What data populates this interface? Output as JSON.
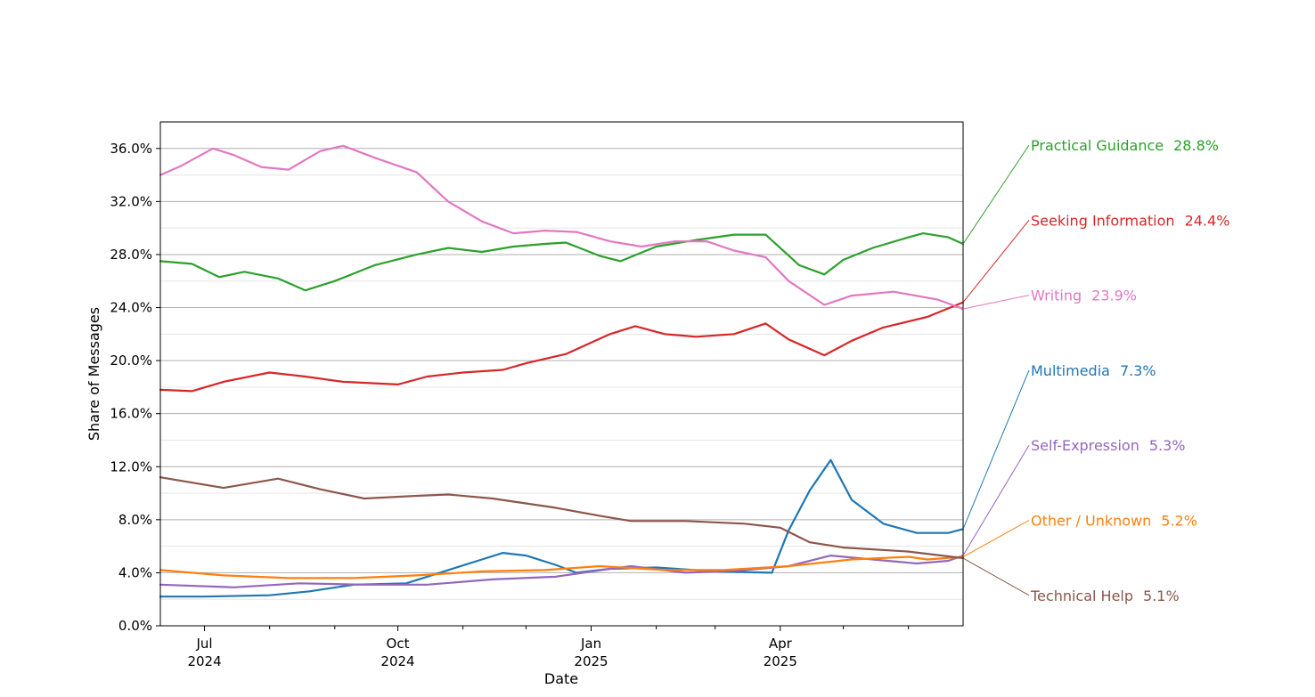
{
  "chart_data": {
    "type": "line",
    "title": "",
    "xlabel": "Date",
    "ylabel": "Share of Messages",
    "ylim": [
      0,
      38
    ],
    "yticks": [
      0,
      4,
      8,
      12,
      16,
      20,
      24,
      28,
      32,
      36
    ],
    "ytick_labels": [
      "0.0%",
      "4.0%",
      "8.0%",
      "12.0%",
      "16.0%",
      "20.0%",
      "24.0%",
      "28.0%",
      "32.0%",
      "36.0%"
    ],
    "xlim": [
      "2024-06-10",
      "2025-06-27"
    ],
    "xticks": [
      {
        "date": "2024-07-01",
        "line1": "Jul",
        "line2": "2024"
      },
      {
        "date": "2024-10-01",
        "line1": "Oct",
        "line2": "2024"
      },
      {
        "date": "2025-01-01",
        "line1": "Jan",
        "line2": "2025"
      },
      {
        "date": "2025-04-01",
        "line1": "Apr",
        "line2": "2025"
      }
    ],
    "minor_xticks": [
      "2024-08-01",
      "2024-09-01",
      "2024-11-01",
      "2024-12-01",
      "2025-02-01",
      "2025-03-01",
      "2025-05-01",
      "2025-06-01"
    ],
    "grid": true,
    "legend": "direct labels at right",
    "series": [
      {
        "name": "Practical Guidance",
        "end_label": "28.8%",
        "color": "#2ca02c",
        "points": [
          [
            "2024-06-10",
            27.5
          ],
          [
            "2024-06-25",
            27.3
          ],
          [
            "2024-07-08",
            26.3
          ],
          [
            "2024-07-20",
            26.7
          ],
          [
            "2024-08-05",
            26.2
          ],
          [
            "2024-08-18",
            25.3
          ],
          [
            "2024-09-01",
            26.0
          ],
          [
            "2024-09-20",
            27.2
          ],
          [
            "2024-10-10",
            28.0
          ],
          [
            "2024-10-25",
            28.5
          ],
          [
            "2024-11-10",
            28.2
          ],
          [
            "2024-11-25",
            28.6
          ],
          [
            "2024-12-10",
            28.8
          ],
          [
            "2024-12-20",
            28.9
          ],
          [
            "2025-01-05",
            27.9
          ],
          [
            "2025-01-15",
            27.5
          ],
          [
            "2025-02-01",
            28.6
          ],
          [
            "2025-02-20",
            29.1
          ],
          [
            "2025-03-10",
            29.5
          ],
          [
            "2025-03-25",
            29.5
          ],
          [
            "2025-04-10",
            27.2
          ],
          [
            "2025-04-22",
            26.5
          ],
          [
            "2025-05-01",
            27.6
          ],
          [
            "2025-05-15",
            28.5
          ],
          [
            "2025-06-01",
            29.3
          ],
          [
            "2025-06-08",
            29.6
          ],
          [
            "2025-06-20",
            29.3
          ],
          [
            "2025-06-27",
            28.8
          ]
        ]
      },
      {
        "name": "Seeking Information",
        "end_label": "24.4%",
        "color": "#d62728",
        "points": [
          [
            "2024-06-10",
            17.8
          ],
          [
            "2024-06-25",
            17.7
          ],
          [
            "2024-07-10",
            18.4
          ],
          [
            "2024-08-01",
            19.1
          ],
          [
            "2024-08-18",
            18.8
          ],
          [
            "2024-09-05",
            18.4
          ],
          [
            "2024-10-01",
            18.2
          ],
          [
            "2024-10-15",
            18.8
          ],
          [
            "2024-11-01",
            19.1
          ],
          [
            "2024-11-20",
            19.3
          ],
          [
            "2024-12-01",
            19.8
          ],
          [
            "2024-12-20",
            20.5
          ],
          [
            "2025-01-10",
            22.0
          ],
          [
            "2025-01-22",
            22.6
          ],
          [
            "2025-02-05",
            22.0
          ],
          [
            "2025-02-20",
            21.8
          ],
          [
            "2025-03-10",
            22.0
          ],
          [
            "2025-03-25",
            22.8
          ],
          [
            "2025-04-05",
            21.6
          ],
          [
            "2025-04-22",
            20.4
          ],
          [
            "2025-05-05",
            21.5
          ],
          [
            "2025-05-20",
            22.5
          ],
          [
            "2025-06-10",
            23.3
          ],
          [
            "2025-06-27",
            24.4
          ]
        ]
      },
      {
        "name": "Writing",
        "end_label": "23.9%",
        "color": "#e377c2",
        "points": [
          [
            "2024-06-10",
            34.0
          ],
          [
            "2024-06-20",
            34.7
          ],
          [
            "2024-07-05",
            36.0
          ],
          [
            "2024-07-15",
            35.5
          ],
          [
            "2024-07-28",
            34.6
          ],
          [
            "2024-08-10",
            34.4
          ],
          [
            "2024-08-25",
            35.8
          ],
          [
            "2024-09-05",
            36.2
          ],
          [
            "2024-09-20",
            35.3
          ],
          [
            "2024-10-10",
            34.2
          ],
          [
            "2024-10-25",
            32.0
          ],
          [
            "2024-11-10",
            30.5
          ],
          [
            "2024-11-25",
            29.6
          ],
          [
            "2024-12-10",
            29.8
          ],
          [
            "2024-12-25",
            29.7
          ],
          [
            "2025-01-10",
            29.0
          ],
          [
            "2025-01-25",
            28.6
          ],
          [
            "2025-02-10",
            29.0
          ],
          [
            "2025-02-25",
            29.0
          ],
          [
            "2025-03-10",
            28.3
          ],
          [
            "2025-03-25",
            27.8
          ],
          [
            "2025-04-05",
            26.0
          ],
          [
            "2025-04-22",
            24.2
          ],
          [
            "2025-05-05",
            24.9
          ],
          [
            "2025-05-25",
            25.2
          ],
          [
            "2025-06-15",
            24.6
          ],
          [
            "2025-06-27",
            23.9
          ]
        ]
      },
      {
        "name": "Multimedia",
        "end_label": "7.3%",
        "color": "#1f77b4",
        "points": [
          [
            "2024-06-10",
            2.2
          ],
          [
            "2024-07-01",
            2.2
          ],
          [
            "2024-08-01",
            2.3
          ],
          [
            "2024-08-20",
            2.6
          ],
          [
            "2024-09-10",
            3.1
          ],
          [
            "2024-10-05",
            3.2
          ],
          [
            "2024-10-25",
            4.2
          ],
          [
            "2024-11-10",
            5.0
          ],
          [
            "2024-11-20",
            5.5
          ],
          [
            "2024-12-01",
            5.3
          ],
          [
            "2024-12-15",
            4.6
          ],
          [
            "2024-12-25",
            4.0
          ],
          [
            "2025-01-10",
            4.3
          ],
          [
            "2025-02-01",
            4.4
          ],
          [
            "2025-03-01",
            4.1
          ],
          [
            "2025-03-28",
            4.0
          ],
          [
            "2025-04-05",
            7.2
          ],
          [
            "2025-04-15",
            10.2
          ],
          [
            "2025-04-25",
            12.5
          ],
          [
            "2025-05-05",
            9.5
          ],
          [
            "2025-05-20",
            7.7
          ],
          [
            "2025-06-05",
            7.0
          ],
          [
            "2025-06-20",
            7.0
          ],
          [
            "2025-06-27",
            7.3
          ]
        ]
      },
      {
        "name": "Self-Expression",
        "end_label": "5.3%",
        "color": "#9467bd",
        "points": [
          [
            "2024-06-10",
            3.1
          ],
          [
            "2024-07-15",
            2.9
          ],
          [
            "2024-08-15",
            3.2
          ],
          [
            "2024-09-15",
            3.1
          ],
          [
            "2024-10-15",
            3.1
          ],
          [
            "2024-11-15",
            3.5
          ],
          [
            "2024-12-15",
            3.7
          ],
          [
            "2025-01-10",
            4.3
          ],
          [
            "2025-01-20",
            4.5
          ],
          [
            "2025-02-15",
            4.0
          ],
          [
            "2025-03-15",
            4.2
          ],
          [
            "2025-04-05",
            4.5
          ],
          [
            "2025-04-25",
            5.3
          ],
          [
            "2025-05-15",
            5.0
          ],
          [
            "2025-06-05",
            4.7
          ],
          [
            "2025-06-20",
            4.9
          ],
          [
            "2025-06-27",
            5.3
          ]
        ]
      },
      {
        "name": "Other / Unknown",
        "end_label": "5.2%",
        "color": "#ff7f0e",
        "points": [
          [
            "2024-06-10",
            4.2
          ],
          [
            "2024-07-10",
            3.8
          ],
          [
            "2024-08-10",
            3.6
          ],
          [
            "2024-09-10",
            3.6
          ],
          [
            "2024-10-10",
            3.8
          ],
          [
            "2024-11-10",
            4.1
          ],
          [
            "2024-12-10",
            4.2
          ],
          [
            "2025-01-05",
            4.5
          ],
          [
            "2025-02-05",
            4.2
          ],
          [
            "2025-03-05",
            4.2
          ],
          [
            "2025-04-05",
            4.5
          ],
          [
            "2025-05-05",
            5.0
          ],
          [
            "2025-06-01",
            5.2
          ],
          [
            "2025-06-10",
            5.0
          ],
          [
            "2025-06-27",
            5.2
          ]
        ]
      },
      {
        "name": "Technical Help",
        "end_label": "5.1%",
        "color": "#8c564b",
        "points": [
          [
            "2024-06-10",
            11.2
          ],
          [
            "2024-07-10",
            10.4
          ],
          [
            "2024-08-05",
            11.1
          ],
          [
            "2024-08-25",
            10.3
          ],
          [
            "2024-09-15",
            9.6
          ],
          [
            "2024-10-10",
            9.8
          ],
          [
            "2024-10-25",
            9.9
          ],
          [
            "2024-11-15",
            9.6
          ],
          [
            "2024-12-15",
            8.9
          ],
          [
            "2025-01-05",
            8.3
          ],
          [
            "2025-01-20",
            7.9
          ],
          [
            "2025-02-15",
            7.9
          ],
          [
            "2025-03-15",
            7.7
          ],
          [
            "2025-04-01",
            7.4
          ],
          [
            "2025-04-15",
            6.3
          ],
          [
            "2025-05-01",
            5.9
          ],
          [
            "2025-06-01",
            5.6
          ],
          [
            "2025-06-27",
            5.1
          ]
        ]
      }
    ]
  }
}
